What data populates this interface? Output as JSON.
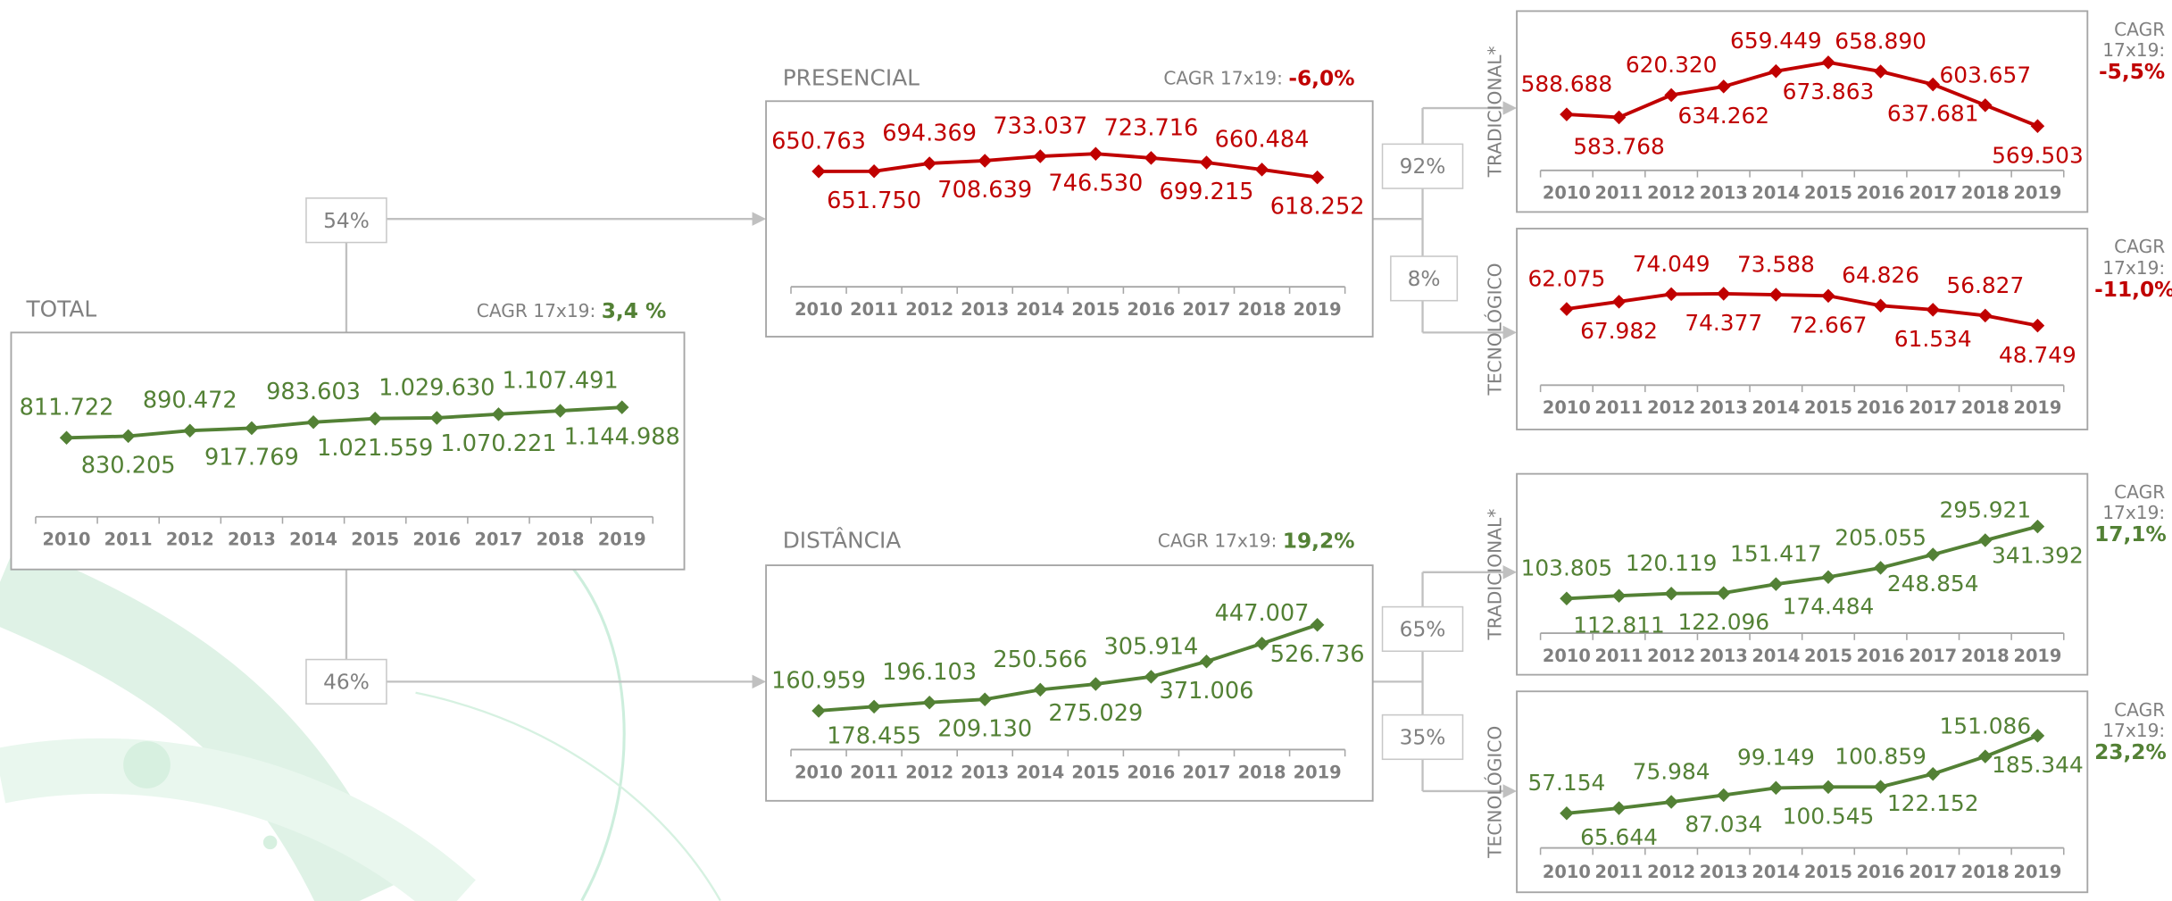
{
  "chart_data": [
    {
      "type": "line",
      "title": "TOTAL",
      "cagr_label": "CAGR 17x19:",
      "cagr": "3,4 %",
      "color": "#538135",
      "categories": [
        "2010",
        "2011",
        "2012",
        "2013",
        "2014",
        "2015",
        "2016",
        "2017",
        "2018",
        "2019"
      ],
      "values": [
        811722,
        830205,
        890472,
        917769,
        983603,
        1021559,
        1029630,
        1070221,
        1107491,
        1144988
      ],
      "value_labels": [
        "811.722",
        "830.205",
        "890.472",
        "917.769",
        "983.603",
        "1.021.559",
        "1.029.630",
        "1.070.221",
        "1.107.491",
        "1.144.988"
      ]
    },
    {
      "type": "line",
      "title": "PRESENCIAL",
      "cagr_label": "CAGR 17x19:",
      "cagr": "-6,0%",
      "color": "#c00000",
      "categories": [
        "2010",
        "2011",
        "2012",
        "2013",
        "2014",
        "2015",
        "2016",
        "2017",
        "2018",
        "2019"
      ],
      "values": [
        650763,
        651750,
        694369,
        708639,
        733037,
        746530,
        723716,
        699215,
        660484,
        618252
      ],
      "value_labels": [
        "650.763",
        "651.750",
        "694.369",
        "708.639",
        "733.037",
        "746.530",
        "723.716",
        "699.215",
        "660.484",
        "618.252"
      ]
    },
    {
      "type": "line",
      "title": "DISTÂNCIA",
      "cagr_label": "CAGR 17x19:",
      "cagr": "19,2%",
      "color": "#538135",
      "categories": [
        "2010",
        "2011",
        "2012",
        "2013",
        "2014",
        "2015",
        "2016",
        "2017",
        "2018",
        "2019"
      ],
      "values": [
        160959,
        178455,
        196103,
        209130,
        250566,
        275029,
        305914,
        371006,
        447007,
        526736
      ],
      "value_labels": [
        "160.959",
        "178.455",
        "196.103",
        "209.130",
        "250.566",
        "275.029",
        "305.914",
        "371.006",
        "447.007",
        "526.736"
      ]
    },
    {
      "type": "line",
      "title": "TRADICIONAL*",
      "cagr_label": "CAGR 17x19:",
      "cagr": "-5,5%",
      "color": "#c00000",
      "categories": [
        "2010",
        "2011",
        "2012",
        "2013",
        "2014",
        "2015",
        "2016",
        "2017",
        "2018",
        "2019"
      ],
      "values": [
        588688,
        583768,
        620320,
        634262,
        659449,
        673863,
        658890,
        637681,
        603657,
        569503
      ],
      "value_labels": [
        "588.688",
        "583.768",
        "620.320",
        "634.262",
        "659.449",
        "673.863",
        "658.890",
        "637.681",
        "603.657",
        "569.503"
      ]
    },
    {
      "type": "line",
      "title": "TECNOLÓGICO",
      "cagr_label": "CAGR 17x19:",
      "cagr": "-11,0%",
      "color": "#c00000",
      "categories": [
        "2010",
        "2011",
        "2012",
        "2013",
        "2014",
        "2015",
        "2016",
        "2017",
        "2018",
        "2019"
      ],
      "values": [
        62075,
        67982,
        74049,
        74377,
        73588,
        72667,
        64826,
        61534,
        56827,
        48749
      ],
      "value_labels": [
        "62.075",
        "67.982",
        "74.049",
        "74.377",
        "73.588",
        "72.667",
        "64.826",
        "61.534",
        "56.827",
        "48.749"
      ]
    },
    {
      "type": "line",
      "title": "TRADICIONAL*",
      "cagr_label": "CAGR 17x19:",
      "cagr": "17,1%",
      "color": "#538135",
      "categories": [
        "2010",
        "2011",
        "2012",
        "2013",
        "2014",
        "2015",
        "2016",
        "2017",
        "2018",
        "2019"
      ],
      "values": [
        103805,
        112811,
        120119,
        122096,
        151417,
        174484,
        205055,
        248854,
        295921,
        341392
      ],
      "value_labels": [
        "103.805",
        "112.811",
        "120.119",
        "122.096",
        "151.417",
        "174.484",
        "205.055",
        "248.854",
        "295.921",
        "341.392"
      ]
    },
    {
      "type": "line",
      "title": "TECNOLÓGICO",
      "cagr_label": "CAGR 17x19:",
      "cagr": "23,2%",
      "color": "#538135",
      "categories": [
        "2010",
        "2011",
        "2012",
        "2013",
        "2014",
        "2015",
        "2016",
        "2017",
        "2018",
        "2019"
      ],
      "values": [
        57154,
        65644,
        75984,
        87034,
        99149,
        100545,
        100859,
        122152,
        151086,
        185344
      ],
      "value_labels": [
        "57.154",
        "65.644",
        "75.984",
        "87.034",
        "99.149",
        "100.545",
        "100.859",
        "122.152",
        "151.086",
        "185.344"
      ]
    }
  ],
  "shares": [
    "54%",
    "46%",
    "92%",
    "8%",
    "65%",
    "35%"
  ]
}
